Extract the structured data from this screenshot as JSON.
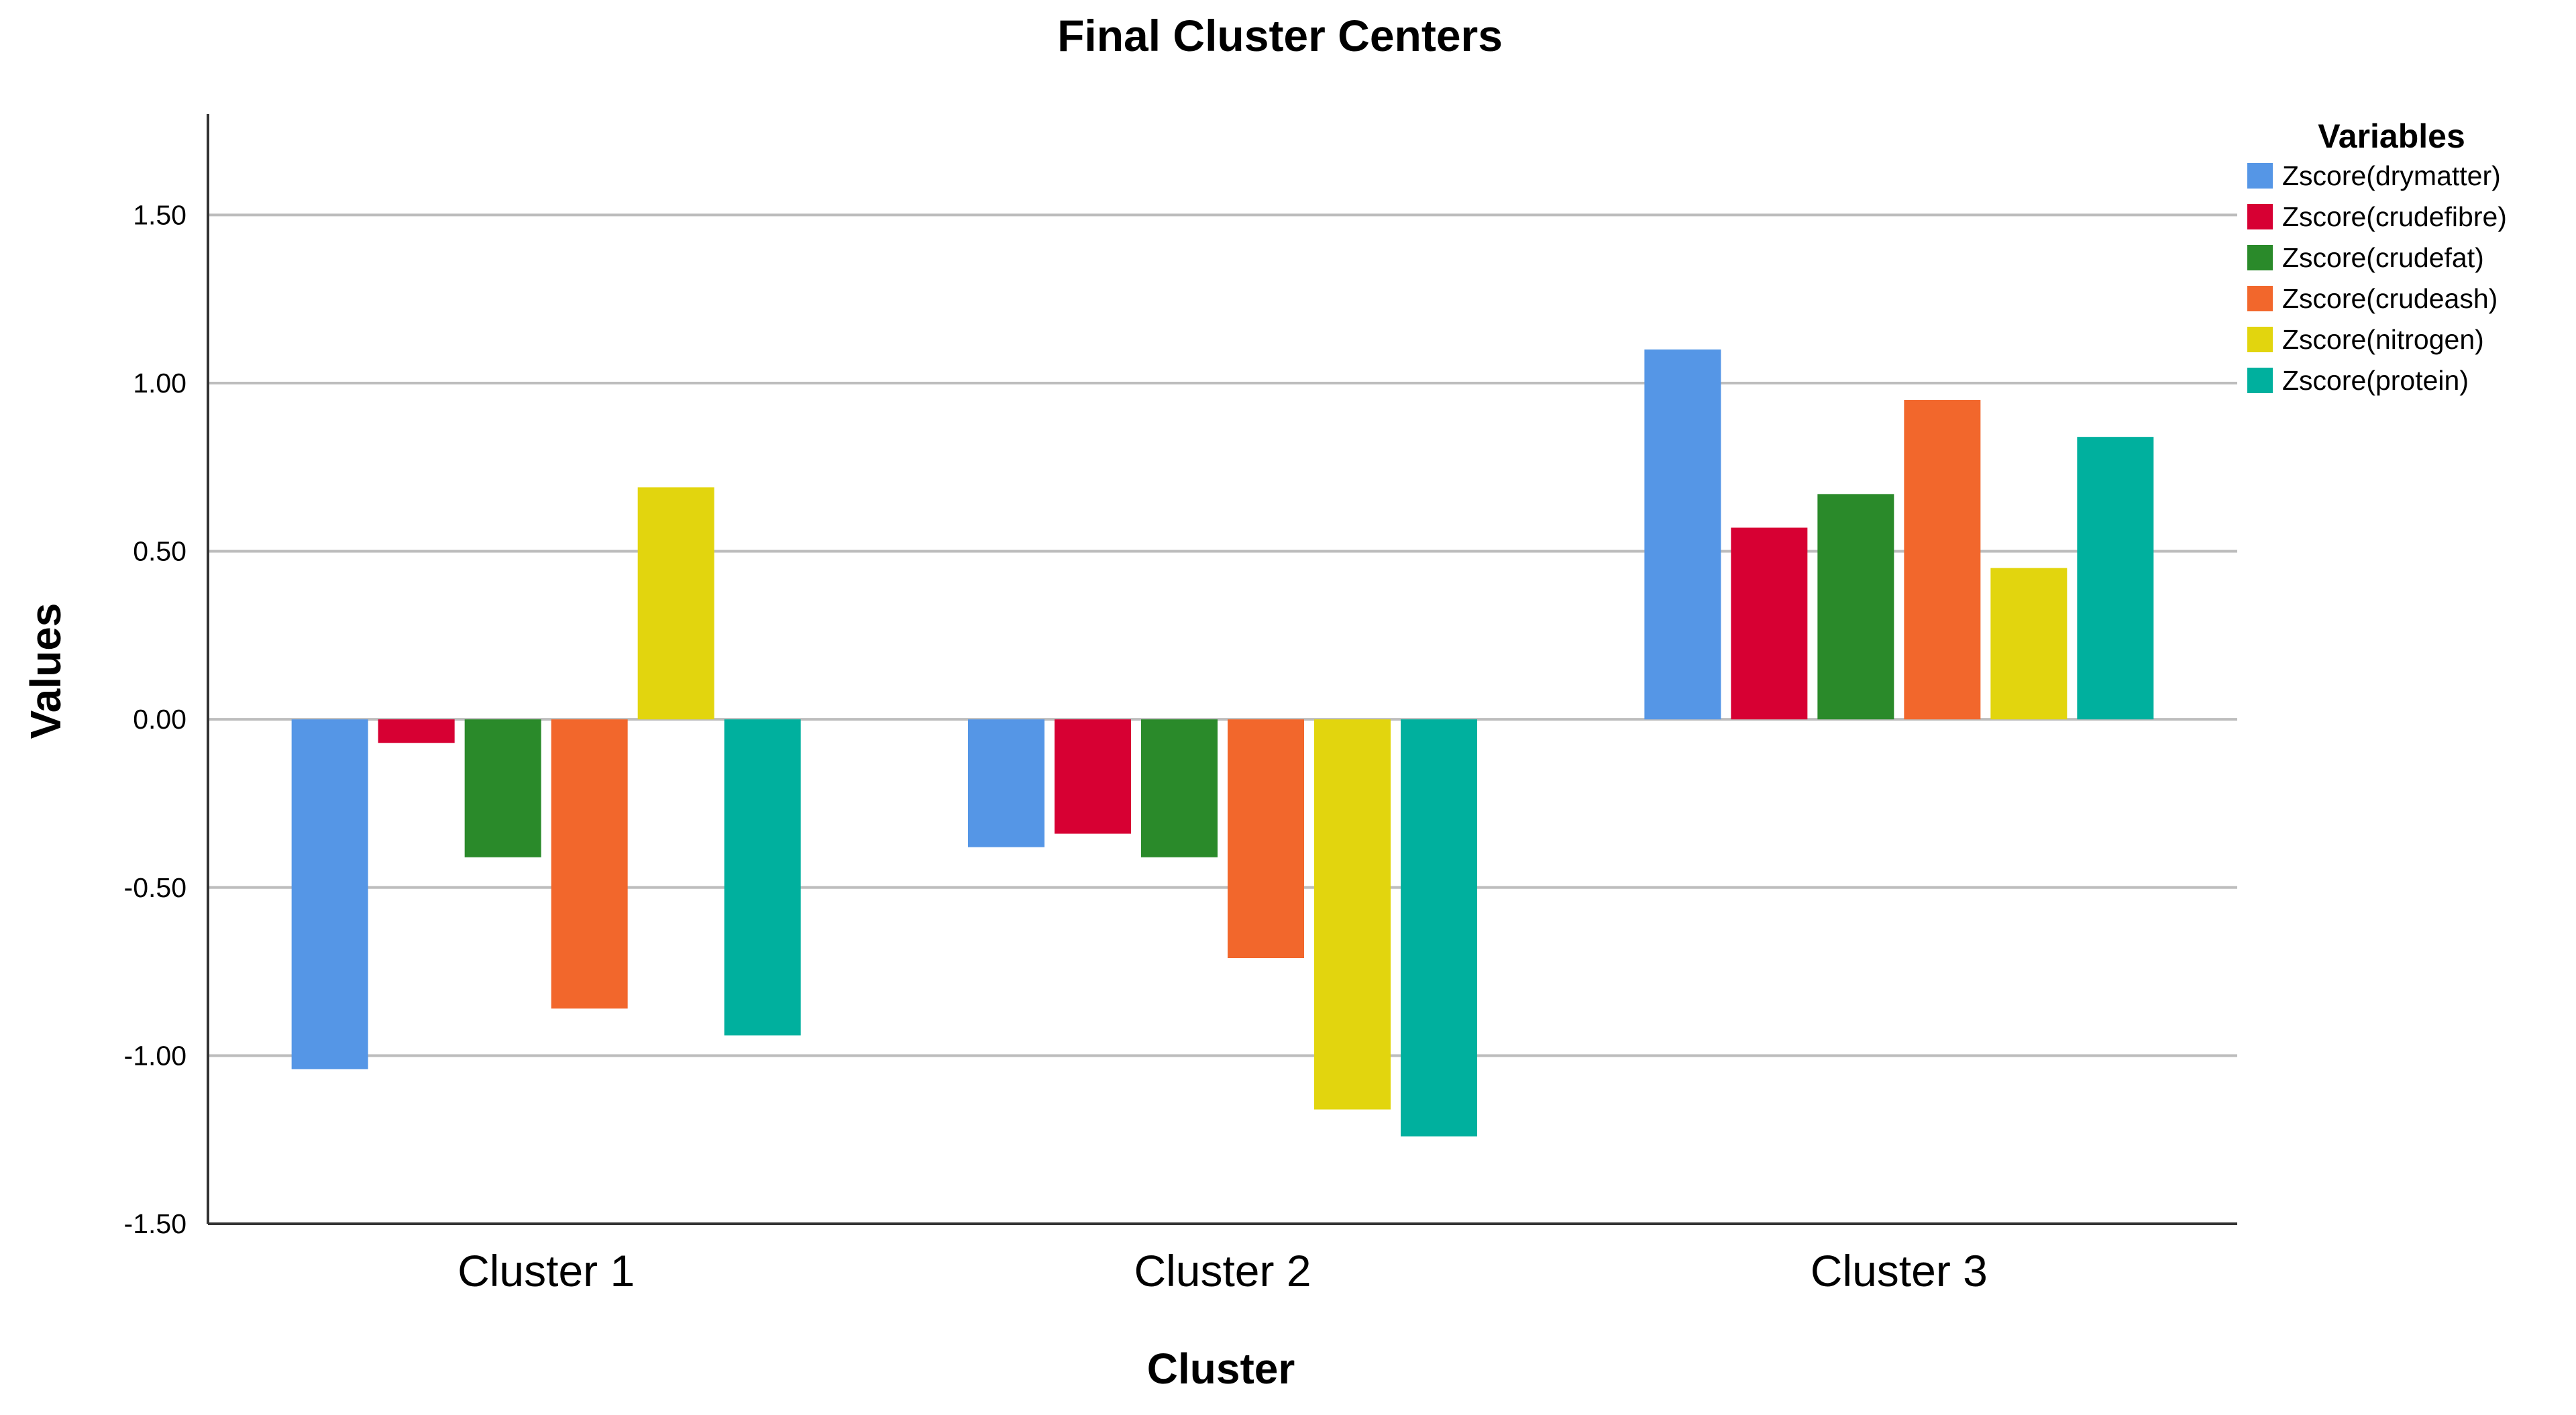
{
  "chart_data": {
    "type": "bar",
    "title": "Final Cluster Centers",
    "xlabel": "Cluster",
    "ylabel": "Values",
    "categories": [
      "Cluster 1",
      "Cluster 2",
      "Cluster 3"
    ],
    "ylim": [
      -1.5,
      1.8
    ],
    "yticks": [
      -1.5,
      -1.0,
      -0.5,
      0.0,
      0.5,
      1.0,
      1.5
    ],
    "ytick_labels": [
      "-1.50",
      "-1.00",
      "-0.50",
      "0.00",
      "0.50",
      "1.00",
      "1.50"
    ],
    "grid": true,
    "legend": {
      "title": "Variables",
      "position": "top-right"
    },
    "series": [
      {
        "name": "Zscore(drymatter)",
        "color": "#5596E6",
        "values": [
          -1.04,
          -0.38,
          1.1
        ]
      },
      {
        "name": "Zscore(crudefibre)",
        "color": "#D70033",
        "values": [
          -0.07,
          -0.34,
          0.57
        ]
      },
      {
        "name": "Zscore(crudefat)",
        "color": "#2A8A2A",
        "values": [
          -0.41,
          -0.41,
          0.67
        ]
      },
      {
        "name": "Zscore(crudeash)",
        "color": "#F2672C",
        "values": [
          -0.86,
          -0.71,
          0.95
        ]
      },
      {
        "name": "Zscore(nitrogen)",
        "color": "#E2D50E",
        "values": [
          0.69,
          -1.16,
          0.45
        ]
      },
      {
        "name": "Zscore(protein)",
        "color": "#00B09E",
        "values": [
          -0.94,
          -1.24,
          0.84
        ]
      }
    ]
  }
}
